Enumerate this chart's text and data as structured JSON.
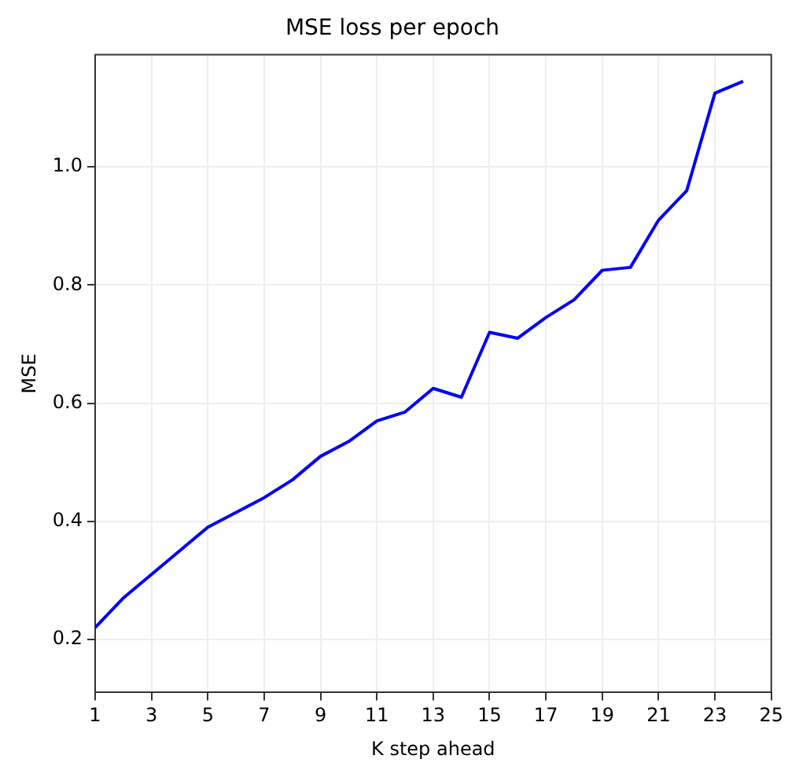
{
  "chart_data": {
    "type": "line",
    "title": "MSE loss per epoch",
    "xlabel": "K step ahead",
    "ylabel": "MSE",
    "x": [
      1,
      2,
      3,
      4,
      5,
      6,
      7,
      8,
      9,
      10,
      11,
      12,
      13,
      14,
      15,
      16,
      17,
      18,
      19,
      20,
      21,
      22,
      23,
      24
    ],
    "series": [
      {
        "color": "#0000ff",
        "values": [
          0.22,
          0.27,
          0.31,
          0.35,
          0.39,
          0.415,
          0.44,
          0.47,
          0.51,
          0.535,
          0.57,
          0.585,
          0.625,
          0.61,
          0.72,
          0.71,
          0.745,
          0.775,
          0.825,
          0.83,
          0.91,
          0.96,
          1.125,
          1.145
        ]
      }
    ],
    "xlim": [
      1,
      25
    ],
    "xticks": [
      1,
      3,
      5,
      7,
      9,
      11,
      13,
      15,
      17,
      19,
      21,
      23,
      25
    ],
    "ylim": [
      0.11,
      1.19
    ],
    "yticks": [
      {
        "value": 0.2,
        "label": "0.2"
      },
      {
        "value": 0.4,
        "label": "0.4"
      },
      {
        "value": 0.6,
        "label": "0.6"
      },
      {
        "value": 0.8,
        "label": "0.8"
      },
      {
        "value": 1.0,
        "label": "1.0"
      }
    ],
    "grid": true,
    "legend": false,
    "marker": "none",
    "line_style": "solid"
  }
}
